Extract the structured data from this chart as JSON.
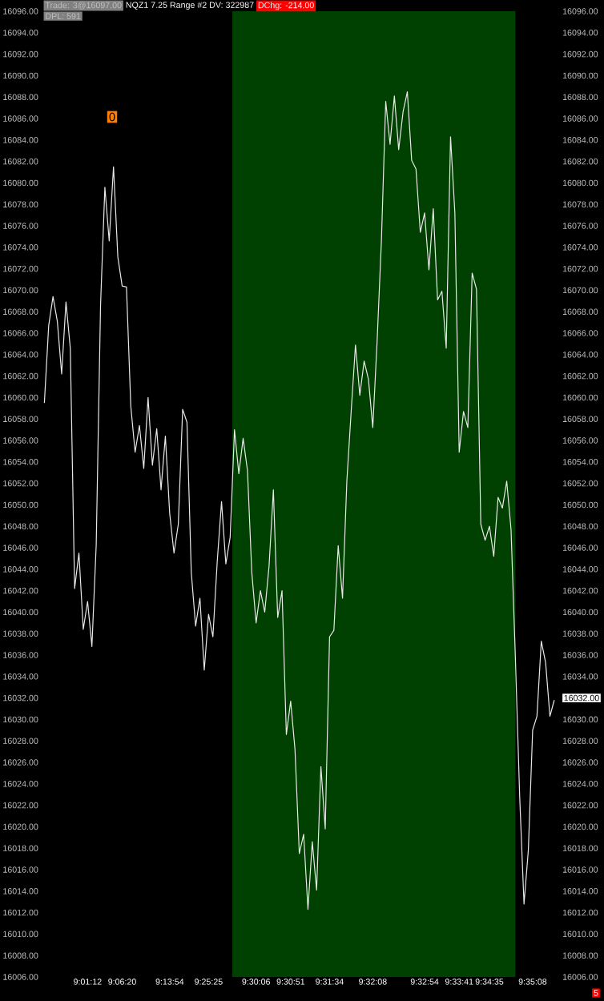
{
  "chart_data": {
    "type": "line",
    "categories": [
      null,
      null,
      null,
      null,
      null,
      null,
      null,
      null,
      null,
      null,
      "9:01:12",
      null,
      null,
      null,
      null,
      null,
      null,
      null,
      "9:06:20",
      null,
      null,
      null,
      null,
      null,
      null,
      null,
      null,
      null,
      null,
      "9:13:54",
      null,
      null,
      null,
      null,
      null,
      null,
      null,
      null,
      "9:25:25",
      null,
      null,
      null,
      null,
      null,
      null,
      null,
      null,
      null,
      null,
      "9:30:06",
      null,
      null,
      null,
      null,
      null,
      null,
      null,
      "9:30:51",
      null,
      null,
      null,
      null,
      null,
      null,
      null,
      null,
      "9:31:34",
      null,
      null,
      null,
      null,
      null,
      null,
      null,
      null,
      null,
      "9:32:08",
      null,
      null,
      null,
      null,
      null,
      null,
      null,
      null,
      null,
      null,
      null,
      "9:32:54",
      null,
      null,
      null,
      null,
      null,
      null,
      null,
      "9:33:41",
      null,
      null,
      null,
      null,
      null,
      null,
      "9:34:35",
      null,
      null,
      null,
      null,
      null,
      null,
      null,
      null,
      null,
      "9:35:08",
      null,
      null,
      null,
      null,
      null
    ],
    "values": [
      16059.5,
      16066.7,
      16069.4,
      16067.1,
      16062.2,
      16068.9,
      16064.6,
      16042.2,
      16045.5,
      16038.4,
      16041,
      16036.8,
      16046.3,
      16068.6,
      16079.6,
      16074.6,
      16081.5,
      16073.1,
      16070.4,
      16070.3,
      16059.2,
      16054.9,
      16057.4,
      16053.4,
      16060,
      16053.7,
      16057.1,
      16051.4,
      16056.4,
      16049.2,
      16045.5,
      16048.2,
      16058.9,
      16057.7,
      16043.7,
      16038.7,
      16041.3,
      16034.6,
      16039.8,
      16037.7,
      16044.7,
      16050.3,
      16044.5,
      16047,
      16057,
      16052.9,
      16056.2,
      16053.2,
      16043.7,
      16039,
      16042,
      16040,
      16044.3,
      16051.4,
      16039.5,
      16042,
      16028.6,
      16031.7,
      16027.2,
      16017.5,
      16019.3,
      16012.3,
      16018.6,
      16014.1,
      16025.6,
      16019.8,
      16037.7,
      16038.3,
      16046.2,
      16041.3,
      16052.2,
      16058.7,
      16064.9,
      16060.2,
      16063.4,
      16061.7,
      16057.2,
      16065.2,
      16074.6,
      16087.6,
      16083.6,
      16088.1,
      16083.1,
      16086.6,
      16088.5,
      16082.1,
      16081.3,
      16075.4,
      16077.2,
      16071.9,
      16077.6,
      16069.1,
      16069.9,
      16064.6,
      16084.3,
      16077.2,
      16054.9,
      16058.7,
      16057.2,
      16071.6,
      16070.1,
      16048.2,
      16046.7,
      16048,
      16045.2,
      16050.7,
      16049.7,
      16052.2,
      16047.7,
      16035.8,
      16022.8,
      16012.8,
      16017.8,
      16029,
      16030.3,
      16037.3,
      16035.3,
      16030.3,
      16031.8
    ],
    "color": "#e8e8e8",
    "marker": "none",
    "line_style": "solid",
    "ylim": [
      16006,
      16096
    ],
    "yticks": [
      {
        "value": 16006,
        "label": "16006.00"
      },
      {
        "value": 16008,
        "label": "16008.00"
      },
      {
        "value": 16010,
        "label": "16010.00"
      },
      {
        "value": 16012,
        "label": "16012.00"
      },
      {
        "value": 16014,
        "label": "16014.00"
      },
      {
        "value": 16016,
        "label": "16016.00"
      },
      {
        "value": 16018,
        "label": "16018.00"
      },
      {
        "value": 16020,
        "label": "16020.00"
      },
      {
        "value": 16022,
        "label": "16022.00"
      },
      {
        "value": 16024,
        "label": "16024.00"
      },
      {
        "value": 16026,
        "label": "16026.00"
      },
      {
        "value": 16028,
        "label": "16028.00"
      },
      {
        "value": 16030,
        "label": "16030.00"
      },
      {
        "value": 16032,
        "label": "16032.00"
      },
      {
        "value": 16034,
        "label": "16034.00"
      },
      {
        "value": 16036,
        "label": "16036.00"
      },
      {
        "value": 16038,
        "label": "16038.00"
      },
      {
        "value": 16040,
        "label": "16040.00"
      },
      {
        "value": 16042,
        "label": "16042.00"
      },
      {
        "value": 16044,
        "label": "16044.00"
      },
      {
        "value": 16046,
        "label": "16046.00"
      },
      {
        "value": 16048,
        "label": "16048.00"
      },
      {
        "value": 16050,
        "label": "16050.00"
      },
      {
        "value": 16052,
        "label": "16052.00"
      },
      {
        "value": 16054,
        "label": "16054.00"
      },
      {
        "value": 16056,
        "label": "16056.00"
      },
      {
        "value": 16058,
        "label": "16058.00"
      },
      {
        "value": 16060,
        "label": "16060.00"
      },
      {
        "value": 16062,
        "label": "16062.00"
      },
      {
        "value": 16064,
        "label": "16064.00"
      },
      {
        "value": 16066,
        "label": "16066.00"
      },
      {
        "value": 16068,
        "label": "16068.00"
      },
      {
        "value": 16070,
        "label": "16070.00"
      },
      {
        "value": 16072,
        "label": "16072.00"
      },
      {
        "value": 16074,
        "label": "16074.00"
      },
      {
        "value": 16076,
        "label": "16076.00"
      },
      {
        "value": 16078,
        "label": "16078.00"
      },
      {
        "value": 16080,
        "label": "16080.00"
      },
      {
        "value": 16082,
        "label": "16082.00"
      },
      {
        "value": 16084,
        "label": "16084.00"
      },
      {
        "value": 16086,
        "label": "16086.00"
      },
      {
        "value": 16088,
        "label": "16088.00"
      },
      {
        "value": 16090,
        "label": "16090.00"
      },
      {
        "value": 16092,
        "label": "16092.00"
      },
      {
        "value": 16094,
        "label": "16094.00"
      },
      {
        "value": 16096,
        "label": "16096.00"
      }
    ],
    "y2lim": [
      16006,
      16096
    ],
    "y2ticks": [
      {
        "value": 16006,
        "label": "16006.00"
      },
      {
        "value": 16008,
        "label": "16008.00"
      },
      {
        "value": 16010,
        "label": "16010.00"
      },
      {
        "value": 16012,
        "label": "16012.00"
      },
      {
        "value": 16014,
        "label": "16014.00"
      },
      {
        "value": 16016,
        "label": "16016.00"
      },
      {
        "value": 16018,
        "label": "16018.00"
      },
      {
        "value": 16020,
        "label": "16020.00"
      },
      {
        "value": 16022,
        "label": "16022.00"
      },
      {
        "value": 16024,
        "label": "16024.00"
      },
      {
        "value": 16026,
        "label": "16026.00"
      },
      {
        "value": 16028,
        "label": "16028.00"
      },
      {
        "value": 16030,
        "label": "16030.00"
      },
      {
        "value": 16032,
        "label": "16032.00"
      },
      {
        "value": 16034,
        "label": "16034.00"
      },
      {
        "value": 16036,
        "label": "16036.00"
      },
      {
        "value": 16038,
        "label": "16038.00"
      },
      {
        "value": 16040,
        "label": "16040.00"
      },
      {
        "value": 16042,
        "label": "16042.00"
      },
      {
        "value": 16044,
        "label": "16044.00"
      },
      {
        "value": 16046,
        "label": "16046.00"
      },
      {
        "value": 16048,
        "label": "16048.00"
      },
      {
        "value": 16050,
        "label": "16050.00"
      },
      {
        "value": 16052,
        "label": "16052.00"
      },
      {
        "value": 16054,
        "label": "16054.00"
      },
      {
        "value": 16056,
        "label": "16056.00"
      },
      {
        "value": 16058,
        "label": "16058.00"
      },
      {
        "value": 16060,
        "label": "16060.00"
      },
      {
        "value": 16062,
        "label": "16062.00"
      },
      {
        "value": 16064,
        "label": "16064.00"
      },
      {
        "value": 16066,
        "label": "16066.00"
      },
      {
        "value": 16068,
        "label": "16068.00"
      },
      {
        "value": 16070,
        "label": "16070.00"
      },
      {
        "value": 16072,
        "label": "16072.00"
      },
      {
        "value": 16074,
        "label": "16074.00"
      },
      {
        "value": 16076,
        "label": "16076.00"
      },
      {
        "value": 16078,
        "label": "16078.00"
      },
      {
        "value": 16080,
        "label": "16080.00"
      },
      {
        "value": 16082,
        "label": "16082.00"
      },
      {
        "value": 16084,
        "label": "16084.00"
      },
      {
        "value": 16086,
        "label": "16086.00"
      },
      {
        "value": 16088,
        "label": "16088.00"
      },
      {
        "value": 16090,
        "label": "16090.00"
      },
      {
        "value": 16092,
        "label": "16092.00"
      },
      {
        "value": 16094,
        "label": "16094.00"
      },
      {
        "value": 16096,
        "label": "16096.00"
      }
    ],
    "annotations": [
      "Trade: 3@16097.00",
      "NQZ1 7.25 Range #2 DV: 322987",
      "DChg: -214.00",
      "DPL: 591",
      "0",
      "5"
    ]
  }
}
